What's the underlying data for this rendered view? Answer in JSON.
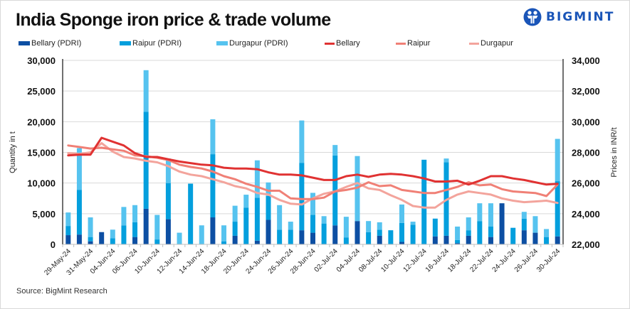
{
  "title": "India Sponge iron price & trade volume",
  "brand": {
    "name": "BIGMINT",
    "icon": "bigmint-people-icon",
    "color": "#1a55b8"
  },
  "source": "Source: BigMint Research",
  "legend": [
    {
      "label": "Bellary (PDRI)",
      "kind": "bar",
      "color": "#0d4fa3"
    },
    {
      "label": "Raipur (PDRI)",
      "kind": "bar",
      "color": "#049fdd"
    },
    {
      "label": "Durgapur (PDRI)",
      "kind": "bar",
      "color": "#56c3ef"
    },
    {
      "label": "Bellary",
      "kind": "line",
      "color": "#e03232"
    },
    {
      "label": "Raipur",
      "kind": "line",
      "color": "#f08076"
    },
    {
      "label": "Durgapur",
      "kind": "line",
      "color": "#f3a49c"
    }
  ],
  "chart_data": {
    "type": "bar+line",
    "title": "India Sponge iron price & trade volume",
    "ylabel": "Quantity in t",
    "y2label": "Prices in INR/t",
    "ylim": [
      0,
      30000
    ],
    "y2lim": [
      22000,
      34000
    ],
    "yticks": [
      "0",
      "5,000",
      "10,000",
      "15,000",
      "20,000",
      "25,000",
      "30,000"
    ],
    "y2ticks": [
      "22,000",
      "24,000",
      "26,000",
      "28,000",
      "30,000",
      "32,000",
      "34,000"
    ],
    "grid": true,
    "legend_position": "top",
    "x_tick_labels": [
      "29-May-24",
      "31-May-24",
      "04-Jun-24",
      "06-Jun-24",
      "10-Jun-24",
      "12-Jun-24",
      "14-Jun-24",
      "18-Jun-24",
      "20-Jun-24",
      "24-Jun-24",
      "26-Jun-24",
      "28-Jun-24",
      "02-Jul-24",
      "04-Jul-24",
      "08-Jul-24",
      "10-Jul-24",
      "12-Jul-24",
      "16-Jul-24",
      "18-Jul-24",
      "22-Jul-24",
      "24-Jul-24",
      "26-Jul-24",
      "30-Jul-24"
    ],
    "n_points": 45,
    "bar_series": [
      {
        "name": "Bellary (PDRI)",
        "values": [
          1500,
          1600,
          500,
          2000,
          0,
          0,
          1200,
          5800,
          0,
          4100,
          0,
          0,
          0,
          4400,
          0,
          1400,
          0,
          600,
          4000,
          0,
          0,
          2300,
          1900,
          0,
          3100,
          0,
          3800,
          0,
          1400,
          0,
          400,
          0,
          0,
          1300,
          1400,
          200,
          1400,
          0,
          1200,
          6700,
          0,
          2300,
          1900,
          0,
          1300
        ]
      },
      {
        "name": "Raipur (PDRI)",
        "values": [
          1500,
          7300,
          700,
          0,
          1000,
          3100,
          2400,
          15800,
          800,
          5900,
          0,
          9900,
          0,
          10300,
          500,
          2300,
          6000,
          7000,
          3900,
          2400,
          2400,
          11000,
          2900,
          3400,
          11400,
          1100,
          0,
          2000,
          1000,
          2300,
          3100,
          3200,
          13800,
          2900,
          12000,
          500,
          900,
          3800,
          1700,
          0,
          2700,
          1900,
          0,
          1200,
          9000
        ]
      },
      {
        "name": "Durgapur (PDRI)",
        "values": [
          2200,
          6800,
          3200,
          0,
          1400,
          3000,
          2800,
          6800,
          4000,
          4000,
          1900,
          0,
          3100,
          5700,
          2600,
          2600,
          2100,
          6100,
          2200,
          4000,
          1300,
          6900,
          3600,
          1200,
          1700,
          3400,
          10600,
          1800,
          1200,
          0,
          3000,
          500,
          0,
          0,
          600,
          2200,
          2100,
          2900,
          3800,
          0,
          0,
          1100,
          2700,
          1300,
          6900
        ]
      }
    ],
    "line_series": [
      {
        "name": "Bellary",
        "values": [
          27800,
          27850,
          27850,
          28950,
          28700,
          28450,
          27950,
          27700,
          27700,
          27550,
          27400,
          27300,
          27200,
          27150,
          27000,
          26950,
          26950,
          26900,
          26700,
          26550,
          26550,
          26500,
          26350,
          26200,
          26200,
          26450,
          26550,
          26400,
          26550,
          26600,
          26550,
          26450,
          26300,
          26100,
          26100,
          26150,
          25900,
          26150,
          26450,
          26450,
          26300,
          26200,
          26050,
          25900,
          25950
        ]
      },
      {
        "name": "Raipur",
        "values": [
          28450,
          28350,
          28250,
          28300,
          28200,
          28100,
          27800,
          27750,
          27650,
          27500,
          27200,
          27050,
          26950,
          26750,
          26450,
          26250,
          25950,
          25750,
          25500,
          25500,
          25000,
          24950,
          24950,
          25050,
          25450,
          25550,
          25700,
          26050,
          25800,
          25850,
          25550,
          25450,
          25350,
          25350,
          25550,
          25750,
          26050,
          25850,
          25900,
          25600,
          25450,
          25400,
          25350,
          25150,
          25900
        ]
      },
      {
        "name": "Durgapur",
        "values": [
          27950,
          27900,
          28000,
          28600,
          28050,
          27700,
          27600,
          27450,
          27350,
          27100,
          26750,
          26550,
          26450,
          26250,
          26050,
          25800,
          25650,
          25350,
          25250,
          24900,
          24650,
          24600,
          25000,
          25300,
          25450,
          25750,
          26000,
          25650,
          25550,
          25200,
          24900,
          24500,
          24400,
          24400,
          24900,
          25250,
          25450,
          25350,
          25250,
          25000,
          24850,
          24750,
          24800,
          24850,
          24700
        ]
      }
    ],
    "line_series_tail": {
      "Bellary": [
        26050,
        26400,
        26450
      ],
      "Raipur": [
        25300,
        25350,
        25300
      ],
      "Durgapur": [
        24950,
        25350,
        25750
      ]
    }
  }
}
